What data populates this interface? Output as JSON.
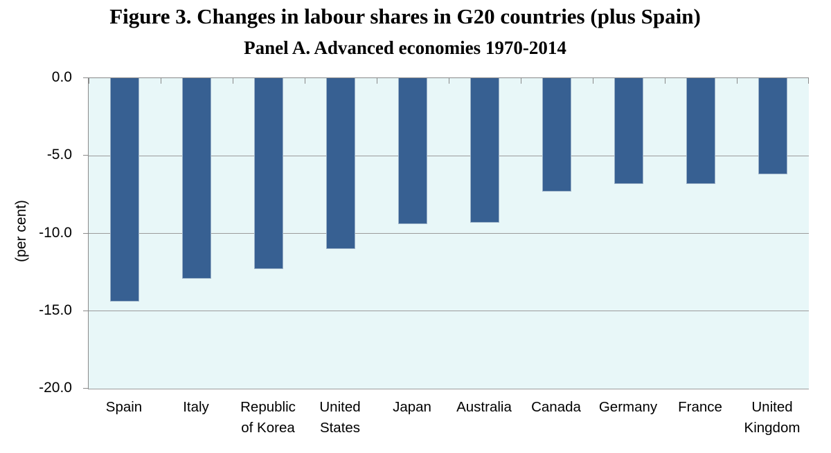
{
  "chart_data": {
    "type": "bar",
    "title": "Figure 3. Changes in labour shares in G20 countries (plus Spain)",
    "subtitle": "Panel A. Advanced economies 1970-2014",
    "xlabel": "",
    "ylabel": "(per cent)",
    "ylim": [
      -20.0,
      0.0
    ],
    "y_ticks": [
      0.0,
      -5.0,
      -10.0,
      -15.0,
      -20.0
    ],
    "y_tick_labels": [
      "0.0",
      "-5.0",
      "-10.0",
      "-15.0",
      "-20.0"
    ],
    "grid": true,
    "legend": false,
    "categories": [
      "Spain",
      "Italy",
      "Republic of Korea",
      "United States",
      "Japan",
      "Australia",
      "Canada",
      "Germany",
      "France",
      "United Kingdom"
    ],
    "category_label_lines": [
      [
        "Spain"
      ],
      [
        "Italy"
      ],
      [
        "Republic",
        "of Korea"
      ],
      [
        "United",
        "States"
      ],
      [
        "Japan"
      ],
      [
        "Australia"
      ],
      [
        "Canada"
      ],
      [
        "Germany"
      ],
      [
        "France"
      ],
      [
        "United",
        "Kingdom"
      ]
    ],
    "values": [
      -14.4,
      -12.9,
      -12.3,
      -11.0,
      -9.4,
      -9.3,
      -7.3,
      -6.8,
      -6.8,
      -6.2
    ],
    "colors": {
      "bar": "#376092",
      "bar_border": "#9cb2c8",
      "plot_background": "#e8f7f8",
      "gridline": "#9b9b9b",
      "axis_line": "#898989",
      "text": "#000000"
    }
  }
}
